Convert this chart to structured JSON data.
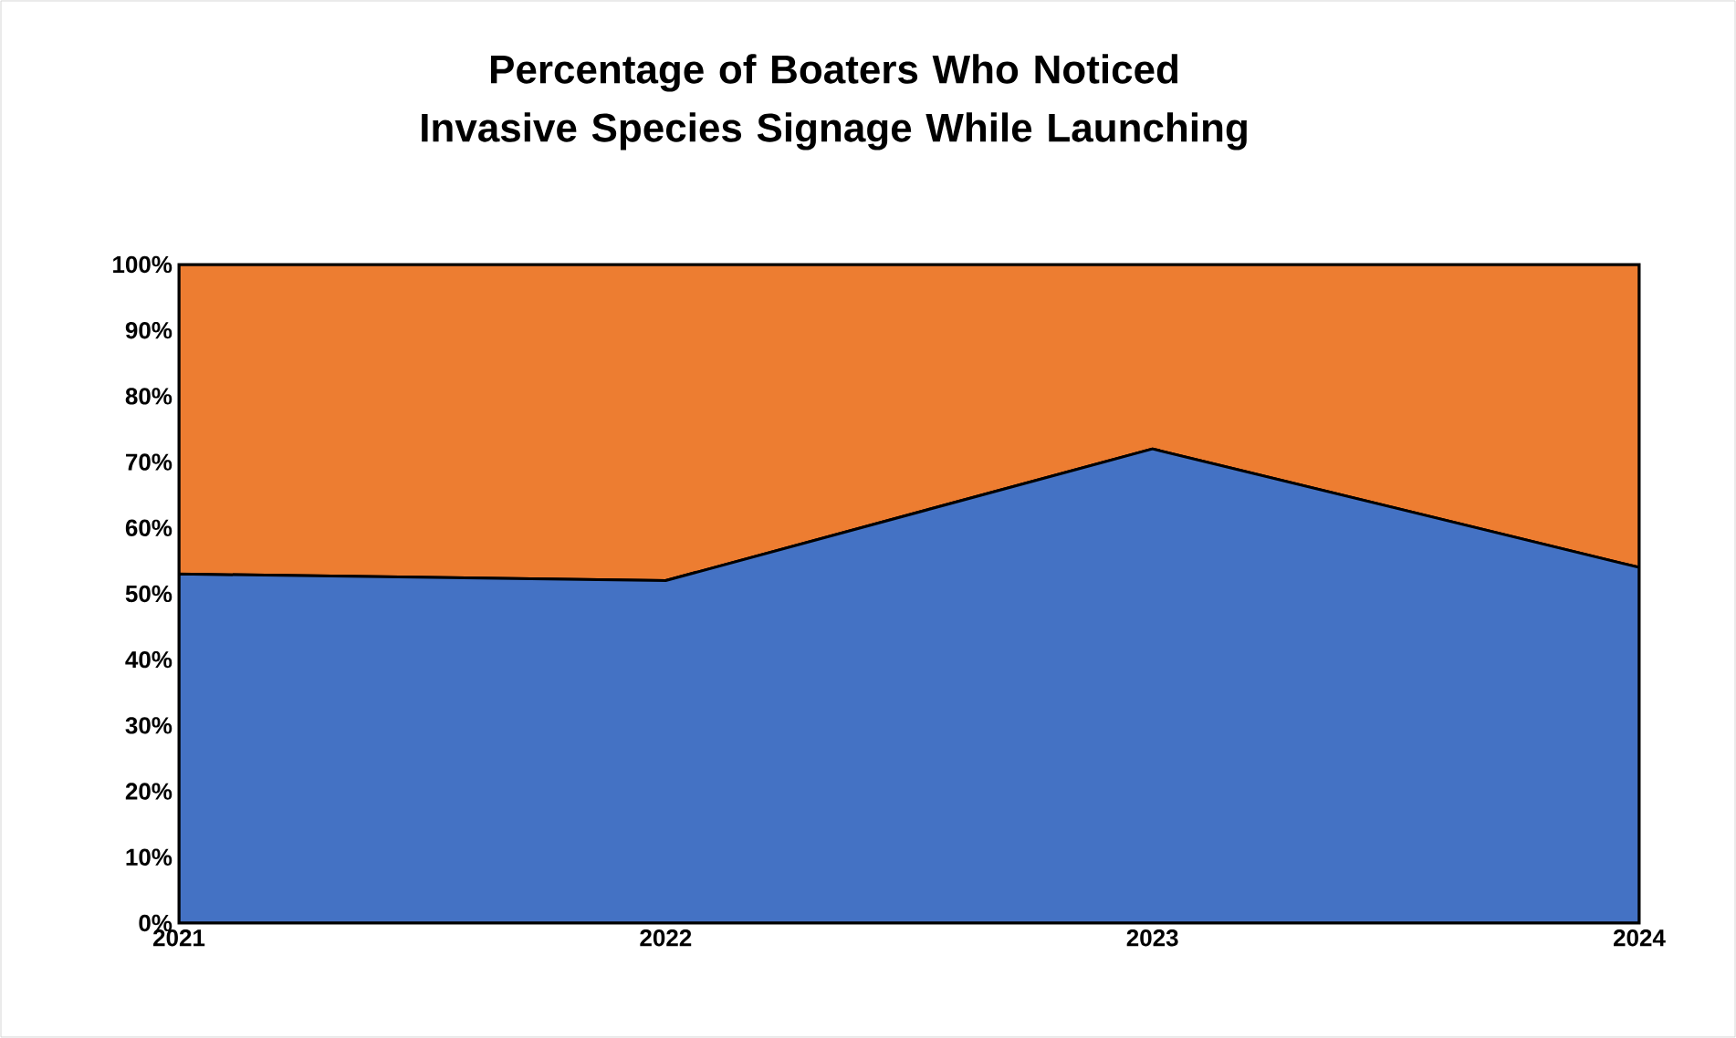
{
  "chart_data": {
    "type": "area",
    "title": "Percentage of Boaters Who Noticed Invasive Species Signage While Launching",
    "categories": [
      "2021",
      "2022",
      "2023",
      "2024"
    ],
    "stacked": true,
    "series": [
      {
        "color": "#4472c4",
        "values": [
          53,
          52,
          72,
          54
        ]
      },
      {
        "color": "#ed7d31",
        "values": [
          47,
          48,
          28,
          46
        ]
      }
    ],
    "ylim": [
      0,
      100
    ],
    "yticks": [
      {
        "value": 0,
        "label": "0%"
      },
      {
        "value": 10,
        "label": "10%"
      },
      {
        "value": 20,
        "label": "20%"
      },
      {
        "value": 30,
        "label": "30%"
      },
      {
        "value": 40,
        "label": "40%"
      },
      {
        "value": 50,
        "label": "50%"
      },
      {
        "value": 60,
        "label": "60%"
      },
      {
        "value": 70,
        "label": "70%"
      },
      {
        "value": 80,
        "label": "80%"
      },
      {
        "value": 90,
        "label": "90%"
      },
      {
        "value": 100,
        "label": "100%"
      }
    ]
  }
}
